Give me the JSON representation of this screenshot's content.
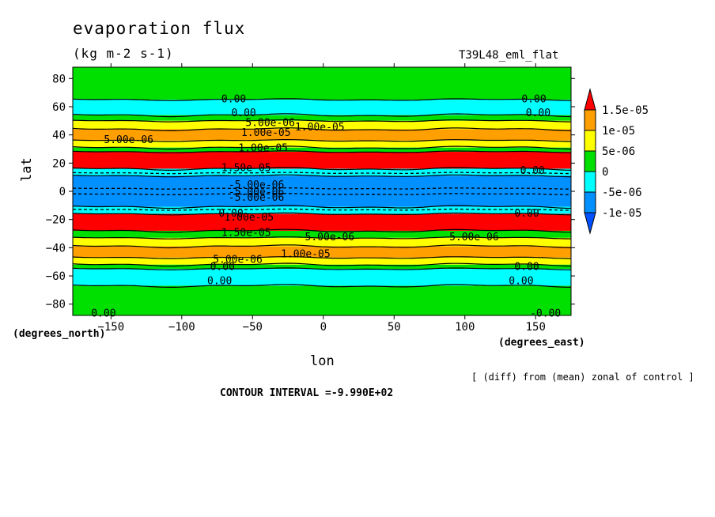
{
  "title": "evaporation flux",
  "units": "(kg m-2 s-1)",
  "run_label": "T39L48_eml_flat",
  "note": "[ (diff) from (mean) zonal of control ]",
  "contour_interval": "CONTOUR INTERVAL =-9.990E+02",
  "chart_data": {
    "type": "heatmap",
    "xlabel": "lon",
    "ylabel": "lat",
    "x_units": "(degrees_east)",
    "y_units": "(degrees_north)",
    "xlim": [
      -177,
      175
    ],
    "ylim": [
      -88,
      88
    ],
    "x_ticks": [
      -150,
      -100,
      -50,
      0,
      50,
      100,
      150
    ],
    "y_ticks": [
      80,
      60,
      40,
      20,
      0,
      -20,
      -40,
      -60,
      -80
    ],
    "legend": {
      "labels": [
        "1.5e-05",
        "1e-05",
        "5e-06",
        "0",
        "-5e-06",
        "-1e-05"
      ],
      "colors": [
        "#ff0000",
        "#ffa000",
        "#ffff00",
        "#00e000",
        "#00ffff",
        "#0090ff",
        "#0050ff"
      ]
    },
    "bands": [
      {
        "lat_top": 88,
        "lat_bottom": 65,
        "color": "#00e000"
      },
      {
        "lat_top": 65,
        "lat_bottom": 54,
        "color": "#00ffff"
      },
      {
        "lat_top": 54,
        "lat_bottom": 50,
        "color": "#00e000"
      },
      {
        "lat_top": 50,
        "lat_bottom": 44,
        "color": "#ffff00"
      },
      {
        "lat_top": 44,
        "lat_bottom": 36,
        "color": "#ffa000"
      },
      {
        "lat_top": 36,
        "lat_bottom": 31,
        "color": "#ffff00"
      },
      {
        "lat_top": 31,
        "lat_bottom": 28,
        "color": "#00e000"
      },
      {
        "lat_top": 28,
        "lat_bottom": 16,
        "color": "#ff0000"
      },
      {
        "lat_top": 16,
        "lat_bottom": 11,
        "color": "#00ffff"
      },
      {
        "lat_top": 11,
        "lat_bottom": -11,
        "color": "#0090ff"
      },
      {
        "lat_top": -11,
        "lat_bottom": -16,
        "color": "#00ffff"
      },
      {
        "lat_top": -16,
        "lat_bottom": -28,
        "color": "#ff0000"
      },
      {
        "lat_top": -28,
        "lat_bottom": -33,
        "color": "#00e000"
      },
      {
        "lat_top": -33,
        "lat_bottom": -39,
        "color": "#ffff00"
      },
      {
        "lat_top": -39,
        "lat_bottom": -47,
        "color": "#ffa000"
      },
      {
        "lat_top": -47,
        "lat_bottom": -52,
        "color": "#ffff00"
      },
      {
        "lat_top": -52,
        "lat_bottom": -55,
        "color": "#00e000"
      },
      {
        "lat_top": -55,
        "lat_bottom": -67,
        "color": "#00ffff"
      },
      {
        "lat_top": -67,
        "lat_bottom": -88,
        "color": "#00e000"
      }
    ],
    "contour_lines": [
      65,
      54,
      50,
      44,
      36,
      31,
      28,
      16,
      11,
      -11,
      -16,
      -28,
      -33,
      -39,
      -47,
      -52,
      -55,
      -67
    ],
    "dashed_lines": [
      13,
      2,
      -2,
      -13
    ],
    "contour_labels": [
      {
        "text": "0.00",
        "lon": -72,
        "lat": 66
      },
      {
        "text": "0.00",
        "lon": 140,
        "lat": 66
      },
      {
        "text": "0.00",
        "lon": -65,
        "lat": 56
      },
      {
        "text": "0.00",
        "lon": 143,
        "lat": 56
      },
      {
        "text": "5.00e-06",
        "lon": -55,
        "lat": 49
      },
      {
        "text": "1.00e-05",
        "lon": -20,
        "lat": 46
      },
      {
        "text": "1.00e-05",
        "lon": -58,
        "lat": 42
      },
      {
        "text": "5.00e-06",
        "lon": -155,
        "lat": 37
      },
      {
        "text": "1.00e-05",
        "lon": -60,
        "lat": 31
      },
      {
        "text": "1.50e-05",
        "lon": -72,
        "lat": 17
      },
      {
        "text": "0.00",
        "lon": 139,
        "lat": 15
      },
      {
        "text": "-5.00e-06",
        "lon": -67,
        "lat": 5
      },
      {
        "text": "-5.00e-06",
        "lon": -67,
        "lat": 0
      },
      {
        "text": "-5.00e-06",
        "lon": -67,
        "lat": -4
      },
      {
        "text": "0.00",
        "lon": -74,
        "lat": -15
      },
      {
        "text": "0.00",
        "lon": 135,
        "lat": -15
      },
      {
        "text": "1.00e-05",
        "lon": -70,
        "lat": -18
      },
      {
        "text": "1.50e-05",
        "lon": -72,
        "lat": -29
      },
      {
        "text": "5.00e-06",
        "lon": -13,
        "lat": -32
      },
      {
        "text": "5.00e-06",
        "lon": 89,
        "lat": -32
      },
      {
        "text": "1.00e-05",
        "lon": -30,
        "lat": -44
      },
      {
        "text": "5.00e-06",
        "lon": -78,
        "lat": -48
      },
      {
        "text": "0.00",
        "lon": -80,
        "lat": -53
      },
      {
        "text": "0.00",
        "lon": 135,
        "lat": -53
      },
      {
        "text": "0.00",
        "lon": -82,
        "lat": -63
      },
      {
        "text": "0.00",
        "lon": 131,
        "lat": -63
      },
      {
        "text": "0.00",
        "lon": -164,
        "lat": -86
      },
      {
        "text": "-0.00",
        "lon": 146,
        "lat": -86
      }
    ]
  }
}
